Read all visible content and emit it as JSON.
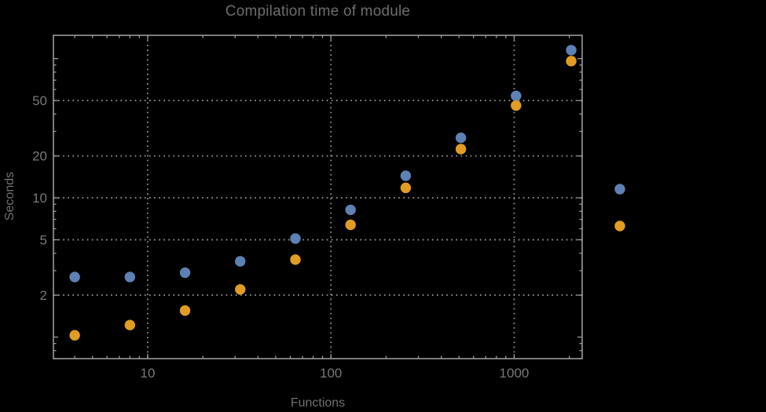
{
  "title": "Compilation time of module",
  "colors": {
    "background": "#000000",
    "frame": "#9a9a9a",
    "grid": "#8d8d8d",
    "text": "#787878",
    "series_blue": "#5e81b5",
    "series_orange": "#e19c24"
  },
  "chart_data": {
    "type": "scatter",
    "title": "Compilation time of module",
    "xlabel": "Functions",
    "ylabel": "Seconds",
    "x_scale": "log",
    "y_scale": "log",
    "xlim": [
      3.06,
      2350
    ],
    "ylim": [
      0.7,
      147
    ],
    "x_ticks_labeled": [
      10,
      100,
      1000
    ],
    "y_ticks_labeled": [
      2,
      5,
      10,
      20,
      50
    ],
    "grid": "dotted lines at labeled ticks",
    "legend_position": "right-outside, markers only (no visible labels)",
    "x": [
      4,
      8,
      16,
      32,
      64,
      128,
      256,
      512,
      1024,
      2048
    ],
    "series": [
      {
        "name": "blue",
        "color": "#5e81b5",
        "values": [
          2.7,
          2.7,
          2.9,
          3.5,
          5.1,
          8.2,
          14.4,
          27,
          54,
          115
        ]
      },
      {
        "name": "orange",
        "color": "#e19c24",
        "values": [
          1.03,
          1.22,
          1.55,
          2.2,
          3.6,
          6.4,
          11.8,
          22.4,
          46,
          96
        ]
      }
    ]
  }
}
